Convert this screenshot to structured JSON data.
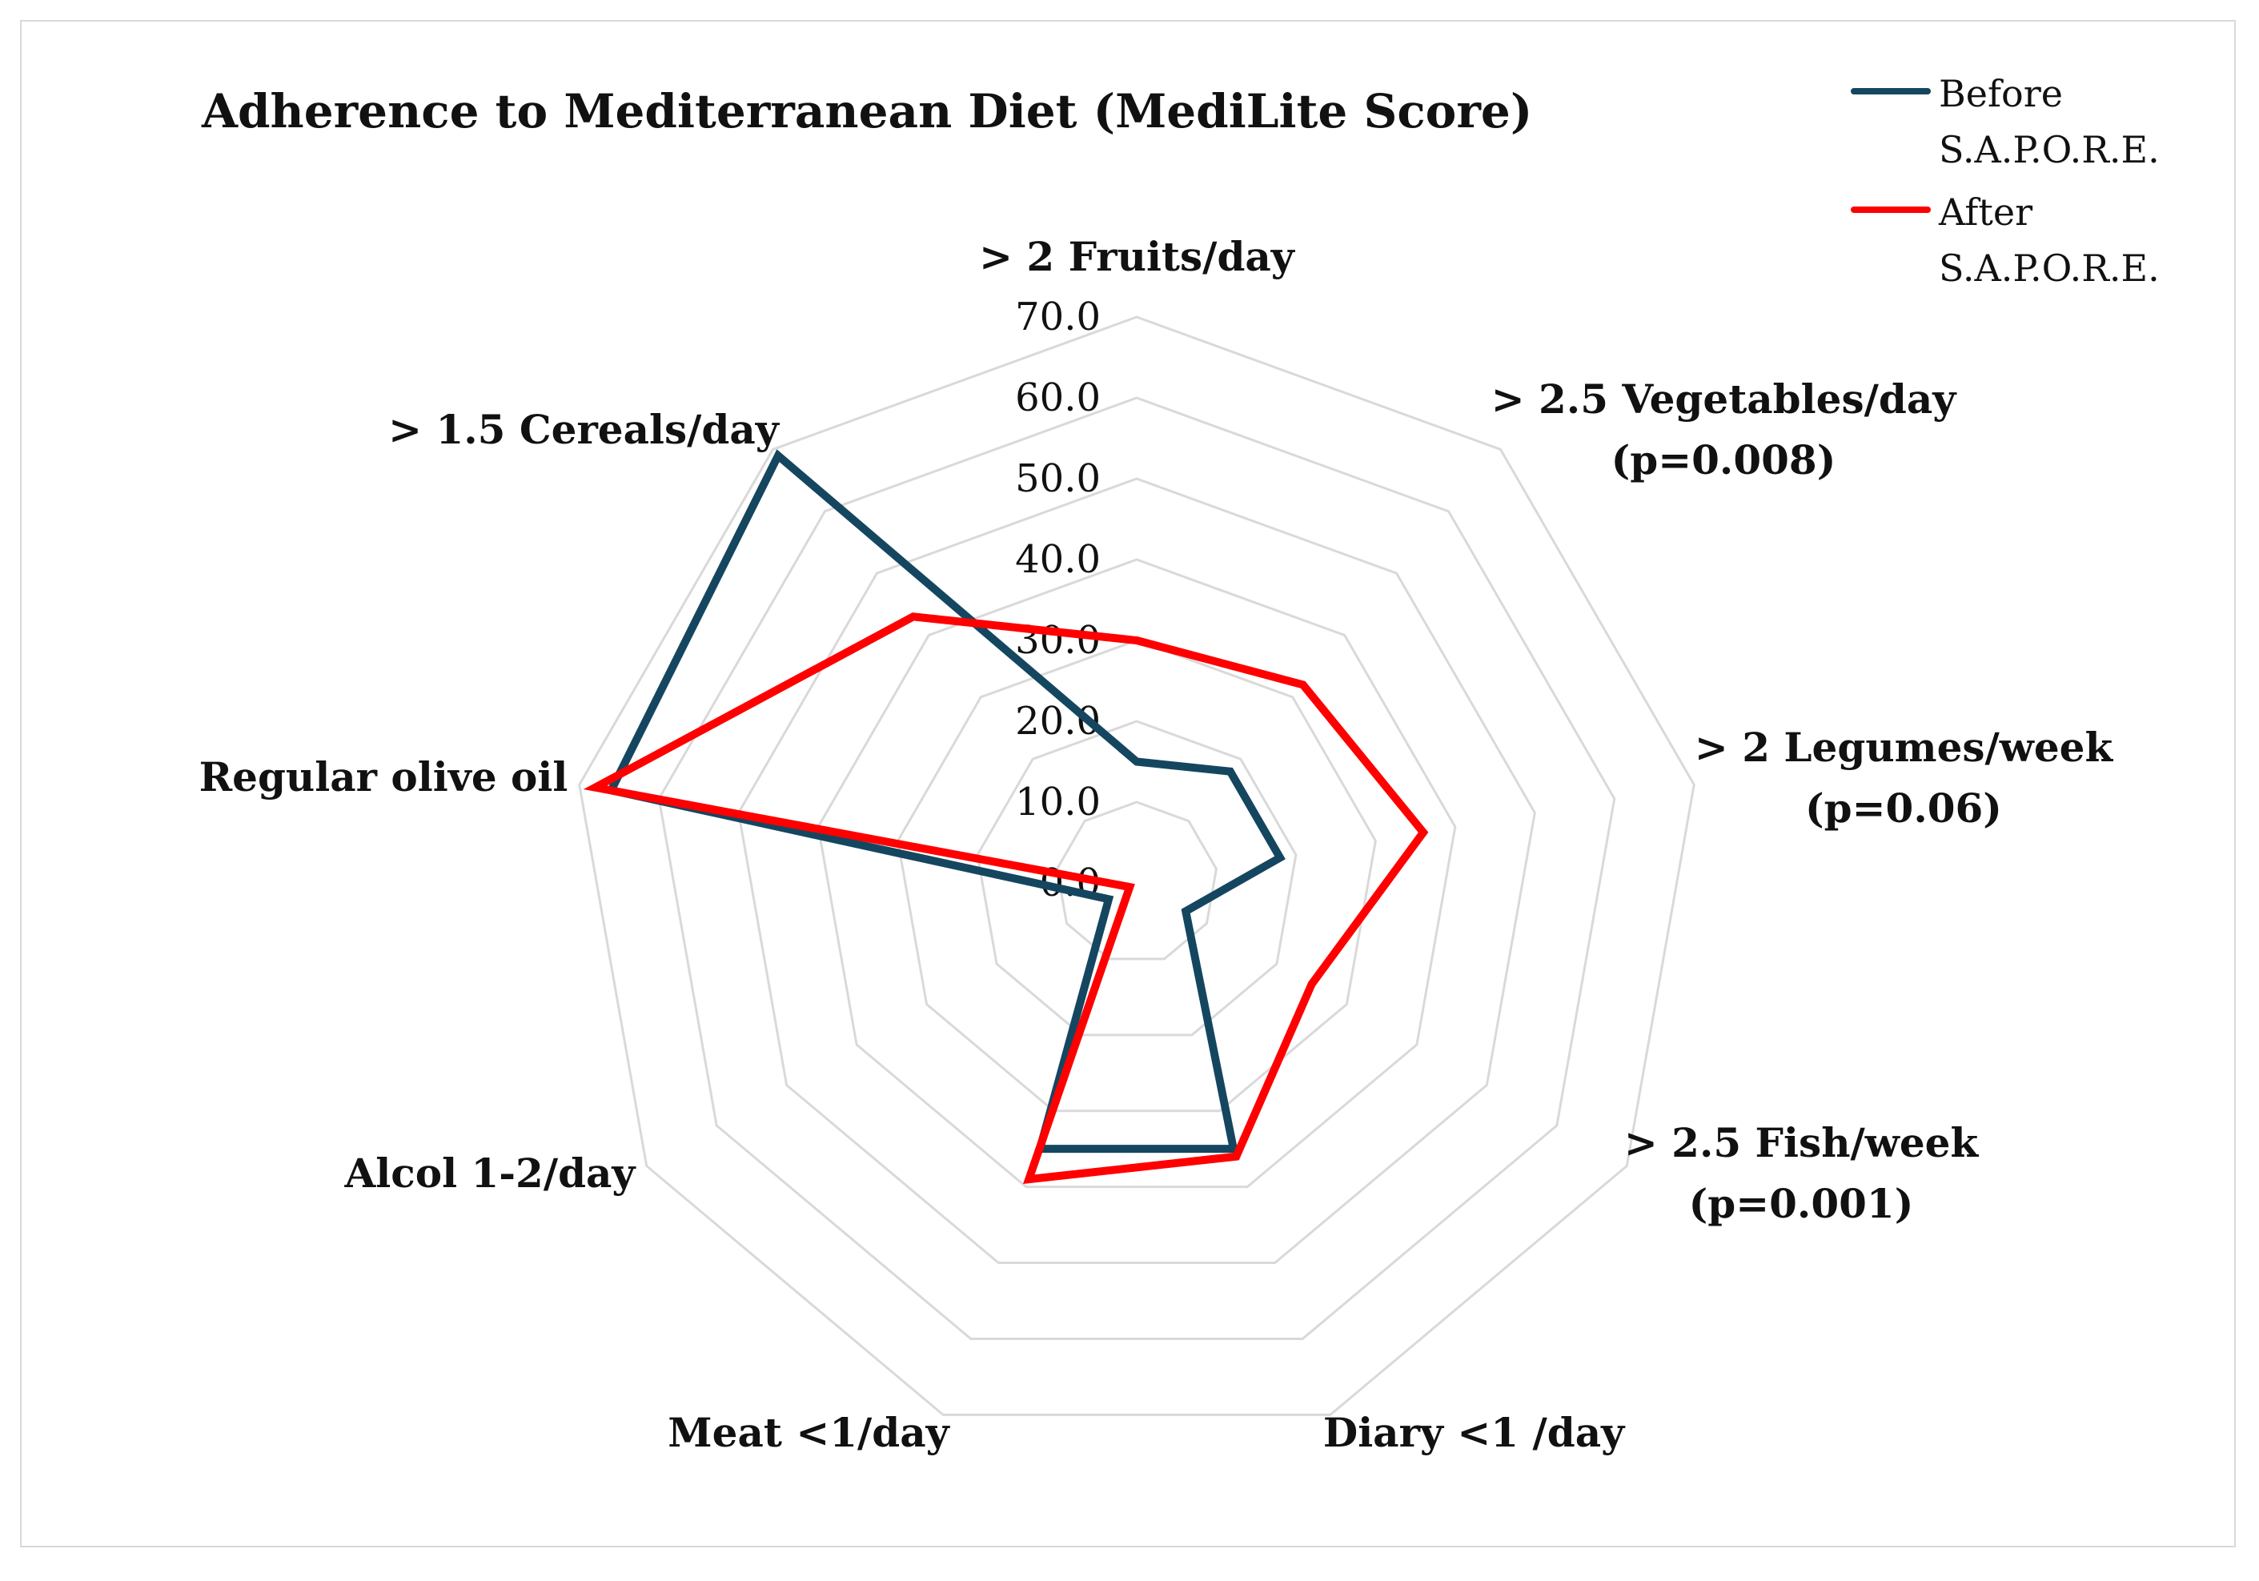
{
  "chart_data": {
    "type": "radar",
    "title": "Adherence to Mediterranean Diet (MediLite Score)",
    "categories": [
      [
        "> 2 Fruits/day"
      ],
      [
        "> 2.5 Vegetables/day",
        "(p=0.008)"
      ],
      [
        "> 2 Legumes/week",
        "(p=0.06)"
      ],
      [
        "> 2.5 Fish/week",
        "(p=0.001)"
      ],
      [
        "Diary <1 /day"
      ],
      [
        "Meat <1/day"
      ],
      [
        "Alcol 1-2/day"
      ],
      [
        "Regular olive oil"
      ],
      [
        "> 1.5 Cereals/day"
      ]
    ],
    "range": [
      0,
      70
    ],
    "ticks": [
      "0.0",
      "10.0",
      "20.0",
      "30.0",
      "40.0",
      "50.0",
      "60.0",
      "70.0"
    ],
    "grid": true,
    "legend_position": "top-right",
    "series": [
      {
        "name": "Before S.A.P.O.R.E.",
        "legend_lines": [
          "Before",
          "S.A.P.O.R.E."
        ],
        "color": "#154660",
        "values": [
          15,
          18,
          18,
          7,
          35,
          35,
          4,
          66,
          69
        ]
      },
      {
        "name": "After S.A.P.O.R.E.",
        "legend_lines": [
          "After",
          "S.A.P.O.R.E."
        ],
        "color": "#ff0000",
        "values": [
          30,
          32,
          36,
          25,
          36,
          39,
          1,
          68,
          43
        ]
      }
    ]
  }
}
